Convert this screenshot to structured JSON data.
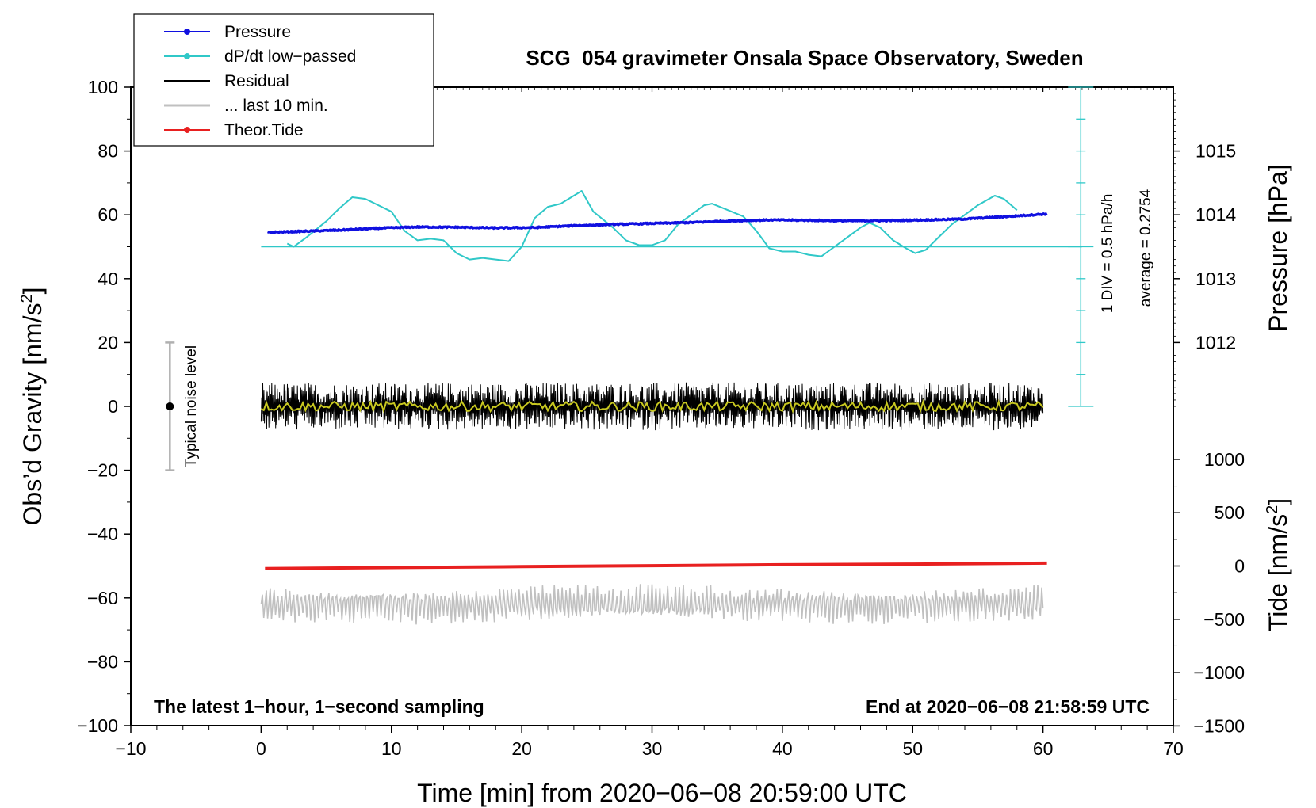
{
  "chart_data": {
    "type": "line",
    "title": "SCG_054 gravimeter Onsala Space Observatory, Sweden",
    "xlabel": "Time [min] from 2020−06−08 20:59:00 UTC",
    "ylabel_left": "Obs’d Gravity [nm/s",
    "ylabel_left_sup": "2",
    "ylabel_left_end": "]",
    "ylabel_right_top": "Pressure [hPa]",
    "ylabel_right_bottom": "Tide [nm/s",
    "ylabel_right_bottom_sup": "2",
    "ylabel_right_bottom_end": "]",
    "xlim": [
      -10,
      70
    ],
    "ylim": [
      -100,
      100
    ],
    "x_ticks": [
      -10,
      0,
      10,
      20,
      30,
      40,
      50,
      60,
      70
    ],
    "x_tick_labels": [
      "−10",
      "0",
      "10",
      "20",
      "30",
      "40",
      "50",
      "60",
      "70"
    ],
    "y_ticks": [
      -100,
      -80,
      -60,
      -40,
      -20,
      0,
      20,
      40,
      60,
      80,
      100
    ],
    "y_tick_labels": [
      "−100",
      "−80",
      "−60",
      "−40",
      "−20",
      "0",
      "20",
      "40",
      "60",
      "80",
      "100"
    ],
    "pressure_axis": {
      "ticks": [
        1012,
        1013,
        1014,
        1015
      ],
      "tick_labels": [
        "1012",
        "1013",
        "1014",
        "1015"
      ],
      "gravity_at_1012": 20,
      "gravity_per_hPa": 20
    },
    "tide_axis": {
      "ticks": [
        -1500,
        -1000,
        -500,
        0,
        500,
        1000
      ],
      "tick_labels": [
        "−1500",
        "−1000",
        "−500",
        "0",
        "500",
        "1000"
      ],
      "gravity_at_0": -50,
      "gravity_per_500": 16.7
    },
    "legend": {
      "placement": "top-left",
      "entries": [
        {
          "label": "Pressure",
          "color": "#1010e0",
          "marker": true
        },
        {
          "label": "dP/dt low−passed",
          "color": "#30c8c8",
          "marker": true
        },
        {
          "label": "Residual",
          "color": "#000000",
          "marker": false
        },
        {
          "label": "... last 10 min.",
          "color": "#c0c0c0",
          "marker": false
        },
        {
          "label": "Theor.Tide",
          "color": "#e82020",
          "marker": true
        }
      ]
    },
    "series": [
      {
        "name": "Pressure",
        "color": "#1010e0",
        "x": [
          0.5,
          3,
          6,
          9,
          12,
          15,
          18,
          21,
          24,
          27,
          30,
          33,
          36,
          39,
          42,
          45,
          48,
          51,
          54,
          57,
          60.3
        ],
        "y": [
          54.5,
          54.8,
          55.2,
          55.8,
          56.2,
          56.1,
          55.9,
          56.0,
          56.6,
          57.0,
          57.3,
          57.6,
          58.1,
          58.4,
          58.3,
          58.1,
          58.2,
          58.4,
          58.7,
          59.4,
          60.3
        ]
      },
      {
        "name": "dP/dt low−passed",
        "color": "#30c8c8",
        "x": [
          2,
          2.5,
          3.5,
          5,
          6,
          7,
          8,
          9,
          10,
          11,
          12,
          13,
          14,
          15,
          16,
          17,
          18,
          19,
          20,
          21,
          22,
          23,
          24,
          24.6,
          25.5,
          27,
          28,
          29,
          30,
          31,
          32,
          33,
          34,
          34.6,
          35.5,
          37,
          38,
          39,
          40,
          41,
          42,
          43,
          44,
          45,
          46,
          46.7,
          47.5,
          48.5,
          49.5,
          50.2,
          51,
          52,
          53,
          54,
          55,
          56.3,
          57,
          58
        ],
        "y": [
          51,
          50,
          53,
          58,
          62,
          65.5,
          65,
          63,
          61,
          55,
          52,
          52.5,
          52,
          48,
          46,
          46.5,
          46,
          45.5,
          50,
          59,
          62.5,
          63.5,
          66,
          67.5,
          61,
          56,
          52,
          50.5,
          50.5,
          52,
          57,
          60,
          63,
          63.5,
          62,
          59.5,
          55,
          49.5,
          48.5,
          48.5,
          47.5,
          47,
          50,
          53,
          56,
          57.5,
          56,
          52,
          49.5,
          48,
          49,
          53,
          57,
          60,
          63,
          66,
          65,
          61.5
        ]
      },
      {
        "name": "dP/dt average",
        "color": "#30c8c8",
        "x": [
          0,
          63
        ],
        "y": [
          50,
          50
        ]
      },
      {
        "name": "Theor.Tide",
        "color": "#e82020",
        "x": [
          0.3,
          10,
          20,
          30,
          40,
          50,
          60.3
        ],
        "y": [
          -50.8,
          -50.5,
          -50.2,
          -49.9,
          -49.6,
          -49.4,
          -49.1
        ]
      },
      {
        "name": "Residual",
        "color": "#000000",
        "x_range": [
          0,
          60
        ],
        "center": 0,
        "amplitude": 10
      },
      {
        "name": "... last 10 min.",
        "color": "#c0c0c0",
        "x_range": [
          0,
          60
        ],
        "center": -62,
        "amplitude": 8
      }
    ],
    "annotations": {
      "corner_left": "The latest 1−hour, 1−second sampling",
      "corner_right": "End at 2020−06−08 21:58:59 UTC",
      "div_label": "1 DIV = 0.5 hPa/h",
      "average_label": "average = 0.2754",
      "noise_label": "Typical noise level",
      "noise_bar": {
        "x": -7,
        "center": 0,
        "low": -20,
        "high": 20
      }
    }
  }
}
